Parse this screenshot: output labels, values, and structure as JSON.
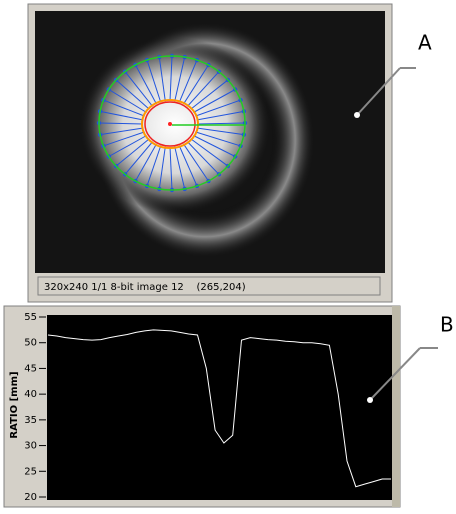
{
  "chart_data": {
    "type": "line",
    "y_label": "RATIO [mm]",
    "values": [
      51.5,
      51.3,
      51.0,
      50.8,
      50.6,
      50.5,
      50.6,
      51.0,
      51.3,
      51.6,
      52.0,
      52.3,
      52.5,
      52.4,
      52.3,
      52.0,
      51.7,
      51.5,
      45,
      33,
      30.5,
      32,
      50.5,
      51,
      50.8,
      50.6,
      50.5,
      50.3,
      50.2,
      50.0,
      50.0,
      49.8,
      49.5,
      40,
      27,
      22,
      22.5,
      23,
      23.5,
      23.5
    ],
    "color": "#ffffff",
    "ylim": [
      20,
      55
    ],
    "yticks": [
      20,
      25,
      30,
      35,
      40,
      45,
      50,
      55
    ]
  },
  "status_bar": "320x240 1/1 8-bit image 12    (265,204)",
  "labels": {
    "a": "A",
    "b": "B"
  }
}
